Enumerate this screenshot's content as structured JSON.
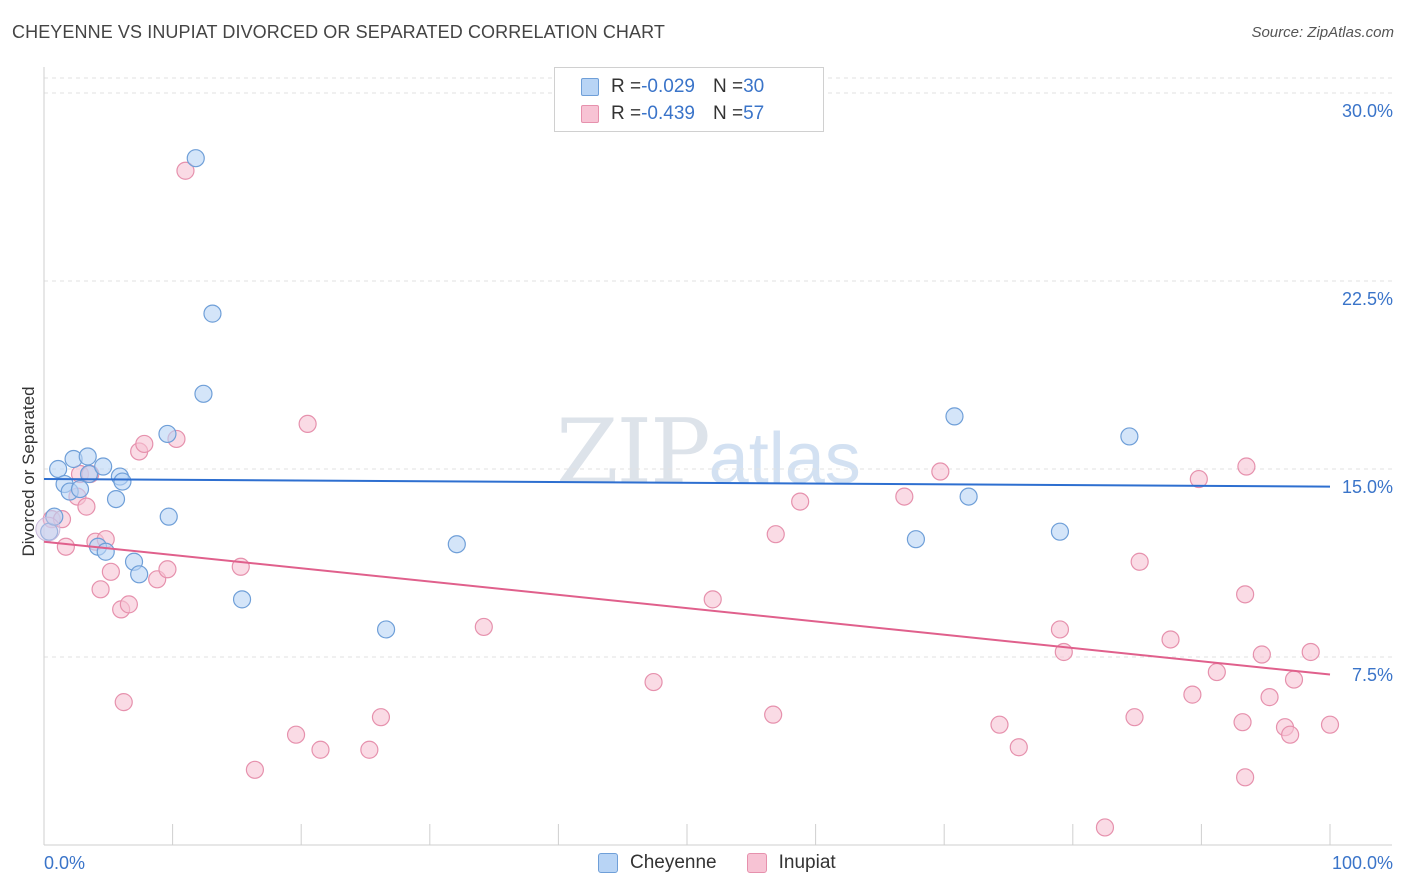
{
  "title": "CHEYENNE VS INUPIAT DIVORCED OR SEPARATED CORRELATION CHART",
  "source": "Source: ZipAtlas.com",
  "watermark": {
    "zip": "ZIP",
    "atlas": "atlas"
  },
  "colors": {
    "cheyenne_fill": "#b8d4f5",
    "cheyenne_stroke": "#6f9fd8",
    "cheyenne_line": "#2e6fd0",
    "inupiat_fill": "#f7c3d4",
    "inupiat_stroke": "#e691ad",
    "inupiat_line": "#e0608c",
    "axis_label": "#3a74c9",
    "grid": "#e2e2e2"
  },
  "legend": {
    "rows": [
      {
        "r_label": "R = ",
        "r_value": "-0.029",
        "n_label": "N = ",
        "n_value": "30"
      },
      {
        "r_label": "R = ",
        "r_value": "-0.439",
        "n_label": "N = ",
        "n_value": "57"
      }
    ]
  },
  "bottom_legend": {
    "series1": "Cheyenne",
    "series2": "Inupiat"
  },
  "chart_data": {
    "type": "scatter",
    "title": "CHEYENNE VS INUPIAT DIVORCED OR SEPARATED CORRELATION CHART",
    "xlabel": "",
    "ylabel": "Divorced or Separated",
    "xlim": [
      0,
      100
    ],
    "ylim": [
      0,
      30.6
    ],
    "x_tick_labels": [
      "0.0%",
      "100.0%"
    ],
    "y_ticks": [
      7.5,
      15.0,
      22.5,
      30.0
    ],
    "y_tick_labels": [
      "7.5%",
      "15.0%",
      "22.5%",
      "30.0%"
    ],
    "grid": true,
    "series": [
      {
        "name": "Cheyenne",
        "trend": {
          "x": [
            0,
            100
          ],
          "y": [
            14.6,
            14.3
          ]
        },
        "points": [
          [
            0.4,
            12.5
          ],
          [
            0.8,
            13.1
          ],
          [
            1.1,
            15.0
          ],
          [
            1.6,
            14.4
          ],
          [
            2.0,
            14.1
          ],
          [
            2.3,
            15.4
          ],
          [
            2.8,
            14.2
          ],
          [
            3.4,
            15.5
          ],
          [
            3.5,
            14.8
          ],
          [
            4.2,
            11.9
          ],
          [
            4.6,
            15.1
          ],
          [
            4.8,
            11.7
          ],
          [
            5.6,
            13.8
          ],
          [
            5.9,
            14.7
          ],
          [
            6.1,
            14.5
          ],
          [
            7.0,
            11.3
          ],
          [
            7.4,
            10.8
          ],
          [
            9.6,
            16.4
          ],
          [
            9.7,
            13.1
          ],
          [
            11.8,
            27.4
          ],
          [
            13.1,
            21.2
          ],
          [
            12.4,
            18.0
          ],
          [
            15.4,
            9.8
          ],
          [
            26.6,
            8.6
          ],
          [
            32.1,
            12.0
          ],
          [
            67.8,
            12.2
          ],
          [
            70.8,
            17.1
          ],
          [
            71.9,
            13.9
          ],
          [
            79.0,
            12.5
          ],
          [
            84.4,
            16.3
          ]
        ]
      },
      {
        "name": "Inupiat",
        "trend": {
          "x": [
            0,
            100
          ],
          "y": [
            12.1,
            6.8
          ]
        },
        "points": [
          [
            0.6,
            13.0
          ],
          [
            1.4,
            13.0
          ],
          [
            1.7,
            11.9
          ],
          [
            2.6,
            13.9
          ],
          [
            2.8,
            14.8
          ],
          [
            3.3,
            13.5
          ],
          [
            3.6,
            14.8
          ],
          [
            4.0,
            12.1
          ],
          [
            4.4,
            10.2
          ],
          [
            4.8,
            12.2
          ],
          [
            5.2,
            10.9
          ],
          [
            6.0,
            9.4
          ],
          [
            6.2,
            5.7
          ],
          [
            6.6,
            9.6
          ],
          [
            7.4,
            15.7
          ],
          [
            7.8,
            16.0
          ],
          [
            8.8,
            10.6
          ],
          [
            9.6,
            11.0
          ],
          [
            10.3,
            16.2
          ],
          [
            11.0,
            26.9
          ],
          [
            15.3,
            11.1
          ],
          [
            16.4,
            3.0
          ],
          [
            19.6,
            4.4
          ],
          [
            20.5,
            16.8
          ],
          [
            21.5,
            3.8
          ],
          [
            25.3,
            3.8
          ],
          [
            26.2,
            5.1
          ],
          [
            34.2,
            8.7
          ],
          [
            47.4,
            6.5
          ],
          [
            52.0,
            9.8
          ],
          [
            56.7,
            5.2
          ],
          [
            56.9,
            12.4
          ],
          [
            58.8,
            13.7
          ],
          [
            66.9,
            13.9
          ],
          [
            69.7,
            14.9
          ],
          [
            74.3,
            4.8
          ],
          [
            75.8,
            3.9
          ],
          [
            79.0,
            8.6
          ],
          [
            79.3,
            7.7
          ],
          [
            82.5,
            0.7
          ],
          [
            84.8,
            5.1
          ],
          [
            85.2,
            11.3
          ],
          [
            87.6,
            8.2
          ],
          [
            89.3,
            6.0
          ],
          [
            89.8,
            14.6
          ],
          [
            91.2,
            6.9
          ],
          [
            93.2,
            4.9
          ],
          [
            93.4,
            2.7
          ],
          [
            93.5,
            15.1
          ],
          [
            93.4,
            10.0
          ],
          [
            94.7,
            7.6
          ],
          [
            95.3,
            5.9
          ],
          [
            96.5,
            4.7
          ],
          [
            96.9,
            4.4
          ],
          [
            97.2,
            6.6
          ],
          [
            98.5,
            7.7
          ],
          [
            100.0,
            4.8
          ]
        ]
      }
    ]
  }
}
